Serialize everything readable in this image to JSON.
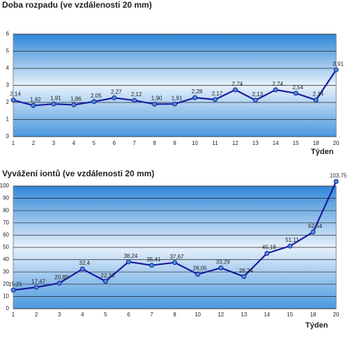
{
  "chart_data": [
    {
      "type": "line",
      "title": "Doba rozpadu (ve vzdálenosti 20 mm)",
      "x_label": "Týden",
      "categories": [
        "1",
        "2",
        "3",
        "4",
        "5",
        "6",
        "7",
        "8",
        "9",
        "10",
        "11",
        "12",
        "13",
        "14",
        "15",
        "18",
        "20"
      ],
      "series": [
        {
          "name": "Doba rozpadu",
          "color": "#1a1aa0",
          "values": [
            2.14,
            1.82,
            1.91,
            1.86,
            2.05,
            2.27,
            2.12,
            1.9,
            1.91,
            2.28,
            2.17,
            2.74,
            2.13,
            2.74,
            2.54,
            2.14,
            3.91
          ],
          "value_labels": [
            "2,14",
            "1,82",
            "1,91",
            "1,86",
            "2,05",
            "2,27",
            "2,12",
            "1,90",
            "1,91",
            "2,28",
            "2,17",
            "2,74",
            "2,13",
            "2,74",
            "2,54",
            "2,14",
            "3,91"
          ]
        }
      ],
      "ylim": [
        0,
        6
      ],
      "yticks": [
        0,
        1,
        2,
        3,
        4,
        5,
        6
      ],
      "grid": true
    },
    {
      "type": "line",
      "title": "Vyvážení iontů (ve vzdálenosti 20 mm)",
      "x_label": "Týden",
      "categories": [
        "1",
        "2",
        "3",
        "4",
        "5",
        "6",
        "7",
        "8",
        "10",
        "12",
        "13",
        "14",
        "15",
        "18",
        "20"
      ],
      "series": [
        {
          "name": "Vyvážení iontů",
          "color": "#1a1aa0",
          "values": [
            15.21,
            17.47,
            20.89,
            32.4,
            22.36,
            38.24,
            35.41,
            37.67,
            28.05,
            33.29,
            26.24,
            45.18,
            51.11,
            62.54,
            103.75
          ],
          "value_labels": [
            "15,21",
            "17,47",
            "20,89",
            "32,4",
            "22,36",
            "38,24",
            "35,41",
            "37,67",
            "28,05",
            "33,29",
            "26,24",
            "45,18",
            "51,11",
            "62,54",
            "103,75"
          ]
        }
      ],
      "ylim": [
        0,
        100
      ],
      "yticks": [
        0,
        10,
        20,
        30,
        40,
        50,
        60,
        70,
        80,
        90,
        100
      ],
      "grid": true
    }
  ]
}
